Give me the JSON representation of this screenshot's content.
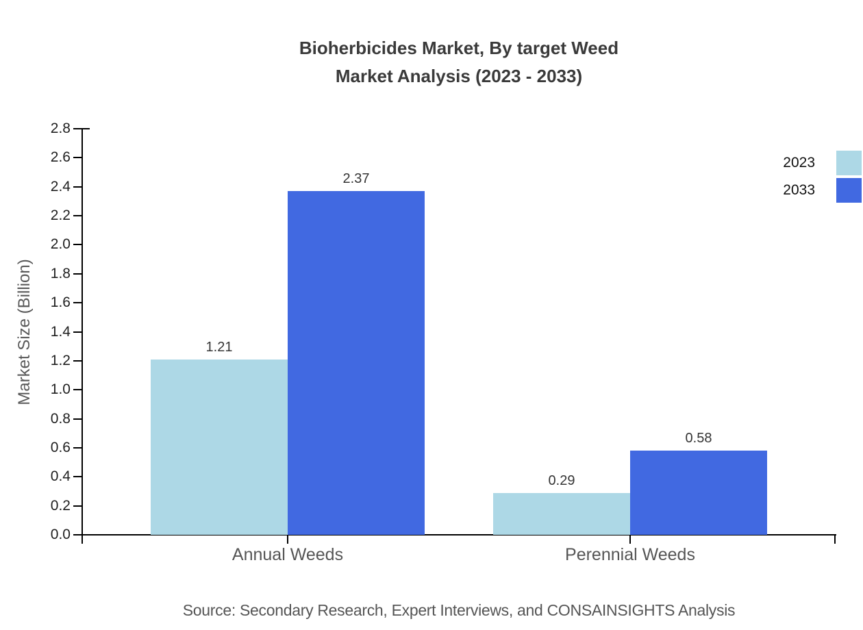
{
  "colors": {
    "background": "#ffffff",
    "axis": "#000000",
    "title": "#3a3a3a",
    "tick_label": "#1f1f1f",
    "category_label": "#555555",
    "axis_title": "#595959",
    "value_label": "#333333",
    "source_text": "#555555",
    "series_2023": "#ADD8E6",
    "series_2033": "#4169E1"
  },
  "chart_data": {
    "type": "bar",
    "title": "Bioherbicides Market, By target Weed Market Analysis (2023 - 2033)",
    "title_lines": [
      "Bioherbicides Market, By target Weed",
      "Market Analysis (2023 - 2033)"
    ],
    "categories": [
      "Annual Weeds",
      "Perennial Weeds"
    ],
    "series": [
      {
        "name": "2023",
        "color": "#ADD8E6",
        "values": [
          1.21,
          0.29
        ],
        "labels": [
          "1.21",
          "0.29"
        ]
      },
      {
        "name": "2033",
        "color": "#4169E1",
        "values": [
          2.37,
          0.58
        ],
        "labels": [
          "2.37",
          "0.58"
        ]
      }
    ],
    "xlabel": "",
    "ylabel": "Market Size (Billion)",
    "ylim": [
      0.0,
      2.8
    ],
    "ytick_step": 0.2,
    "ytick_labels": [
      "0.0",
      "0.2",
      "0.4",
      "0.6",
      "0.8",
      "1.0",
      "1.2",
      "1.4",
      "1.6",
      "1.8",
      "2.0",
      "2.2",
      "2.4",
      "2.6",
      "2.8"
    ],
    "grid": false,
    "legend_position": "top-right",
    "legend_entries": [
      "2023",
      "2033"
    ]
  },
  "footer": {
    "source": "Source: Secondary Research, Expert Interviews, and CONSAINSIGHTS Analysis"
  }
}
